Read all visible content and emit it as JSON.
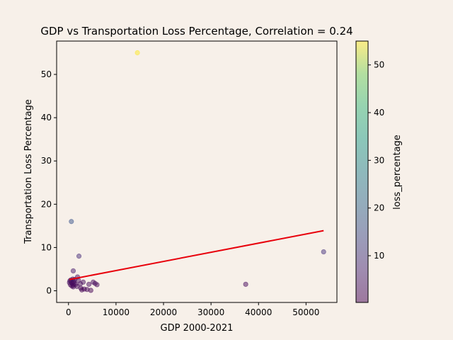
{
  "chart_data": {
    "type": "scatter",
    "title": "GDP vs Transportation Loss Percentage, Correlation = 0.24",
    "xlabel": "GDP 2000-2021",
    "ylabel": "Transportation Loss Percentage",
    "colorbar_label": "loss_percentage",
    "xlim": [
      -2500,
      56500
    ],
    "ylim": [
      -2.7,
      57.7
    ],
    "xticks": [
      0,
      10000,
      20000,
      30000,
      40000,
      50000
    ],
    "yticks": [
      0,
      10,
      20,
      30,
      40,
      50
    ],
    "colorbar_range": [
      0.2,
      55
    ],
    "colorbar_ticks": [
      10,
      20,
      30,
      40,
      50
    ],
    "colormap": "viridis",
    "point_alpha": 0.5,
    "grid": false,
    "legend": "none",
    "trend_line": {
      "color": "#e8000b",
      "x": [
        200,
        53700
      ],
      "y": [
        2.6,
        13.9
      ]
    },
    "points": [
      {
        "x": 14500,
        "y": 55.0
      },
      {
        "x": 600,
        "y": 16.0
      },
      {
        "x": 2200,
        "y": 8.0
      },
      {
        "x": 53700,
        "y": 9.0
      },
      {
        "x": 1000,
        "y": 4.6
      },
      {
        "x": 37300,
        "y": 1.5
      },
      {
        "x": 1900,
        "y": 3.2
      },
      {
        "x": 300,
        "y": 2.3
      },
      {
        "x": 600,
        "y": 2.0
      },
      {
        "x": 800,
        "y": 1.7
      },
      {
        "x": 1100,
        "y": 2.2
      },
      {
        "x": 400,
        "y": 1.4
      },
      {
        "x": 700,
        "y": 1.1
      },
      {
        "x": 1000,
        "y": 1.3
      },
      {
        "x": 1300,
        "y": 2.6
      },
      {
        "x": 500,
        "y": 2.5
      },
      {
        "x": 900,
        "y": 2.7
      },
      {
        "x": 1200,
        "y": 1.8
      },
      {
        "x": 1500,
        "y": 1.5
      },
      {
        "x": 1000,
        "y": 0.9
      },
      {
        "x": 1800,
        "y": 1.0
      },
      {
        "x": 2500,
        "y": 1.6
      },
      {
        "x": 2600,
        "y": 0.6
      },
      {
        "x": 2800,
        "y": 0.2
      },
      {
        "x": 3100,
        "y": 2.0
      },
      {
        "x": 3300,
        "y": 0.4
      },
      {
        "x": 3900,
        "y": 0.3
      },
      {
        "x": 4300,
        "y": 1.5
      },
      {
        "x": 4700,
        "y": 0.1
      },
      {
        "x": 5200,
        "y": 2.0
      },
      {
        "x": 5600,
        "y": 1.7
      },
      {
        "x": 6000,
        "y": 1.4
      },
      {
        "x": 2100,
        "y": 2.4
      },
      {
        "x": 200,
        "y": 1.9
      }
    ]
  }
}
